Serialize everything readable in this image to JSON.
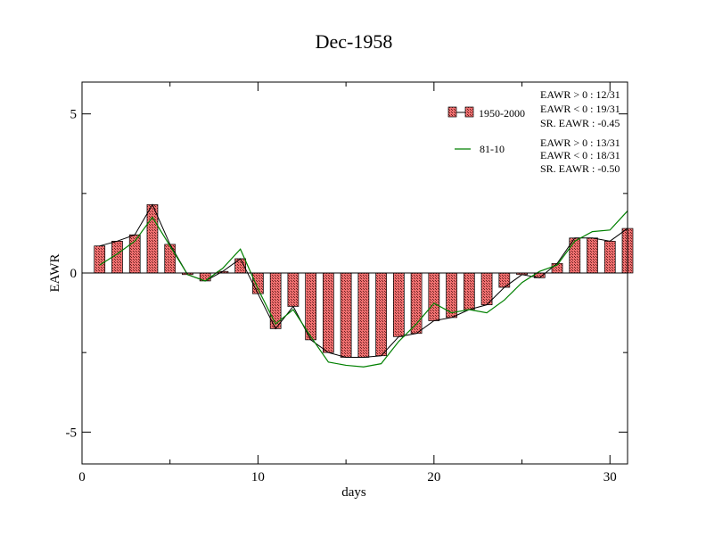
{
  "chart_data": {
    "type": "bar",
    "title": "Dec-1958",
    "xlabel": "days",
    "ylabel": "EAWR",
    "xlim": [
      0,
      31
    ],
    "ylim": [
      -6,
      6
    ],
    "x_ticks": [
      0,
      10,
      20,
      30
    ],
    "y_ticks": [
      5,
      0,
      -5
    ],
    "x_tick_labels": [
      "0",
      "10",
      "20",
      "30"
    ],
    "y_tick_labels": [
      "5",
      "0",
      "-5"
    ],
    "grid": false,
    "legend_position": "top-right",
    "days": [
      1,
      2,
      3,
      4,
      5,
      6,
      7,
      8,
      9,
      10,
      11,
      12,
      13,
      14,
      15,
      16,
      17,
      18,
      19,
      20,
      21,
      22,
      23,
      24,
      25,
      26,
      27,
      28,
      29,
      30,
      31
    ],
    "series": [
      {
        "name": "1950-2000",
        "style": "bars-with-black-line",
        "color": "#f07070",
        "values": [
          0.85,
          1.0,
          1.2,
          2.15,
          0.9,
          -0.05,
          -0.25,
          0.05,
          0.45,
          -0.65,
          -1.75,
          -1.05,
          -2.1,
          -2.5,
          -2.65,
          -2.65,
          -2.6,
          -2.0,
          -1.9,
          -1.5,
          -1.4,
          -1.15,
          -1.0,
          -0.45,
          -0.05,
          -0.15,
          0.3,
          1.1,
          1.1,
          1.0,
          1.4
        ]
      },
      {
        "name": "81-10",
        "style": "line",
        "color": "#008000",
        "values": [
          0.25,
          0.6,
          1.0,
          1.75,
          0.85,
          -0.05,
          -0.25,
          0.15,
          0.75,
          -0.5,
          -1.6,
          -1.15,
          -2.0,
          -2.8,
          -2.9,
          -2.95,
          -2.85,
          -2.15,
          -1.6,
          -0.95,
          -1.25,
          -1.15,
          -1.25,
          -0.85,
          -0.3,
          0.05,
          0.25,
          1.0,
          1.3,
          1.35,
          1.95
        ]
      }
    ],
    "stats": [
      [
        "EAWR > 0 : 12/31",
        "EAWR < 0 : 19/31",
        "SR. EAWR : -0.45"
      ],
      [
        "EAWR > 0 : 13/31",
        "EAWR < 0 : 18/31",
        "SR. EAWR : -0.50"
      ]
    ]
  }
}
